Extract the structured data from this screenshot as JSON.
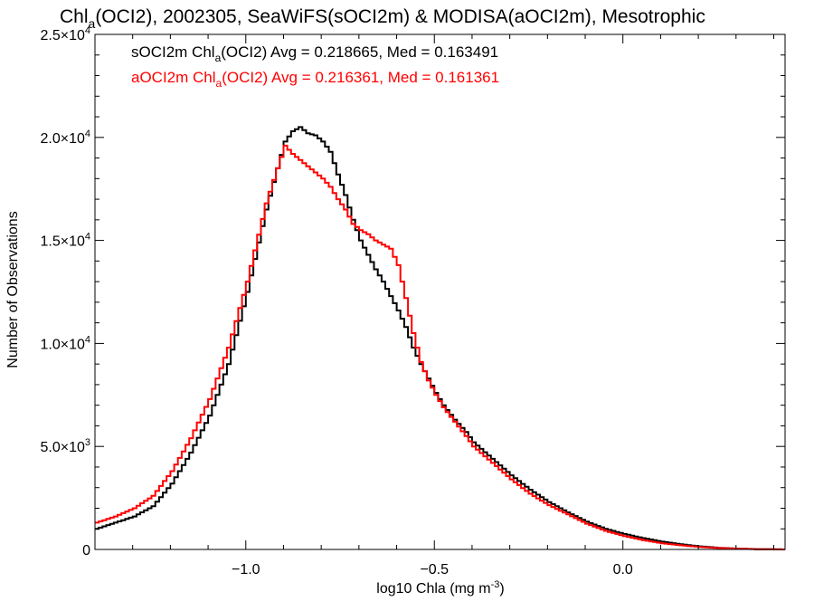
{
  "chart_data": {
    "type": "line",
    "title": {
      "prefix": "Chl",
      "sub": "a",
      "rest": "(OCI2), 2002305, SeaWiFS(sOCI2m) & MODISA(aOCI2m), Mesotrophic"
    },
    "xlabel": {
      "text": "log10 Chla (mg m",
      "sup": "-3",
      "close": ")"
    },
    "ylabel": "Number of Observations",
    "xlim": [
      -1.4,
      0.43
    ],
    "ylim": [
      0,
      25000
    ],
    "x_ticks": [
      {
        "value": -1.0,
        "label": "−1.0"
      },
      {
        "value": -0.5,
        "label": "−0.5"
      },
      {
        "value": 0.0,
        "label": "0.0"
      }
    ],
    "y_ticks": [
      {
        "value": 0,
        "mant": "0",
        "exp": ""
      },
      {
        "value": 5000,
        "mant": "5.0×10",
        "exp": "3"
      },
      {
        "value": 10000,
        "mant": "1.0×10",
        "exp": "4"
      },
      {
        "value": 15000,
        "mant": "1.5×10",
        "exp": "4"
      },
      {
        "value": 20000,
        "mant": "2.0×10",
        "exp": "4"
      },
      {
        "value": 25000,
        "mant": "2.5×10",
        "exp": "4"
      }
    ],
    "grid": false,
    "legend_position": "top-left",
    "series": [
      {
        "name": "sOCI2m",
        "color": "#000000",
        "legend": {
          "pre": "sOCI2m Chl",
          "sub": "a",
          "post": "(OCI2) Avg = 0.218665, Med = 0.163491"
        },
        "x": [
          -1.4,
          -1.35,
          -1.3,
          -1.25,
          -1.2,
          -1.15,
          -1.1,
          -1.05,
          -1.0,
          -0.95,
          -0.92,
          -0.9,
          -0.88,
          -0.86,
          -0.84,
          -0.82,
          -0.8,
          -0.78,
          -0.76,
          -0.74,
          -0.72,
          -0.7,
          -0.68,
          -0.66,
          -0.64,
          -0.62,
          -0.6,
          -0.58,
          -0.56,
          -0.54,
          -0.52,
          -0.5,
          -0.48,
          -0.45,
          -0.42,
          -0.4,
          -0.35,
          -0.3,
          -0.25,
          -0.2,
          -0.15,
          -0.1,
          -0.05,
          0.0,
          0.05,
          0.1,
          0.15,
          0.2,
          0.25,
          0.3,
          0.35,
          0.43
        ],
        "y": [
          1000,
          1300,
          1600,
          2100,
          3200,
          4700,
          6500,
          9000,
          12500,
          16500,
          18500,
          19800,
          20300,
          20500,
          20200,
          20100,
          19800,
          19300,
          18200,
          17200,
          16000,
          15000,
          14300,
          13600,
          13000,
          12300,
          11600,
          10800,
          9800,
          9000,
          8300,
          7600,
          7000,
          6300,
          5700,
          5200,
          4400,
          3600,
          2900,
          2300,
          1800,
          1350,
          1000,
          750,
          550,
          380,
          250,
          150,
          80,
          40,
          15,
          0
        ]
      },
      {
        "name": "aOCI2m",
        "color": "#ff0000",
        "legend": {
          "pre": "aOCI2m Chl",
          "sub": "a",
          "post": "(OCI2) Avg = 0.216361, Med = 0.161361"
        },
        "x": [
          -1.4,
          -1.35,
          -1.3,
          -1.25,
          -1.2,
          -1.15,
          -1.1,
          -1.05,
          -1.0,
          -0.95,
          -0.92,
          -0.9,
          -0.88,
          -0.86,
          -0.84,
          -0.82,
          -0.8,
          -0.78,
          -0.76,
          -0.74,
          -0.72,
          -0.7,
          -0.68,
          -0.66,
          -0.64,
          -0.62,
          -0.6,
          -0.58,
          -0.56,
          -0.54,
          -0.52,
          -0.5,
          -0.48,
          -0.45,
          -0.42,
          -0.4,
          -0.35,
          -0.3,
          -0.25,
          -0.2,
          -0.15,
          -0.1,
          -0.05,
          0.0,
          0.05,
          0.1,
          0.15,
          0.2,
          0.25,
          0.3,
          0.35,
          0.43
        ],
        "y": [
          1300,
          1600,
          2000,
          2600,
          3800,
          5400,
          7300,
          9800,
          13000,
          16800,
          18500,
          19600,
          19200,
          18900,
          18600,
          18300,
          18000,
          17600,
          17000,
          16500,
          15800,
          15500,
          15300,
          15000,
          14800,
          14600,
          13800,
          12200,
          10500,
          9100,
          8200,
          7500,
          6900,
          6200,
          5500,
          5000,
          4200,
          3400,
          2700,
          2150,
          1700,
          1250,
          900,
          650,
          450,
          300,
          200,
          120,
          70,
          35,
          15,
          0
        ]
      }
    ]
  }
}
